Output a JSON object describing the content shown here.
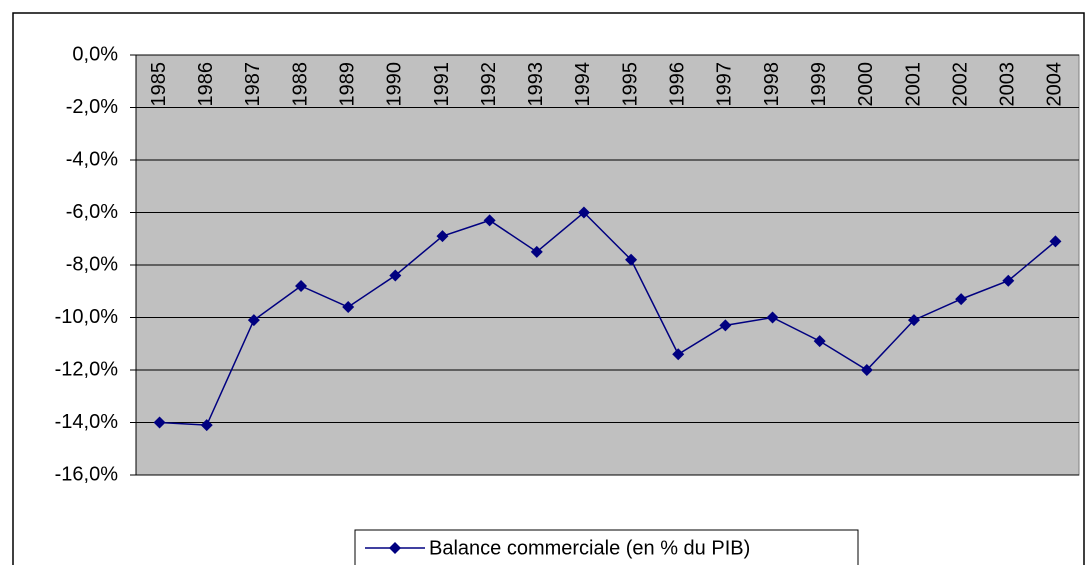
{
  "chart_data": {
    "type": "line",
    "categories": [
      "1985",
      "1986",
      "1987",
      "1988",
      "1989",
      "1990",
      "1991",
      "1992",
      "1993",
      "1994",
      "1995",
      "1996",
      "1997",
      "1998",
      "1999",
      "2000",
      "2001",
      "2002",
      "2003",
      "2004"
    ],
    "series": [
      {
        "name": "Balance commerciale (en % du PIB)",
        "color": "#000080",
        "values": [
          -14.0,
          -14.1,
          -10.1,
          -8.8,
          -9.6,
          -8.4,
          -6.9,
          -6.3,
          -7.5,
          -6.0,
          -7.8,
          -11.4,
          -10.3,
          -10.0,
          -10.9,
          -12.0,
          -10.1,
          -9.3,
          -8.6,
          -7.1
        ]
      }
    ],
    "ylim": [
      -16,
      0
    ],
    "yticks": [
      {
        "value": 0,
        "label": "0,0%"
      },
      {
        "value": -2,
        "label": "-2,0%"
      },
      {
        "value": -4,
        "label": "-4,0%"
      },
      {
        "value": -6,
        "label": "-6,0%"
      },
      {
        "value": -8,
        "label": "-8,0%"
      },
      {
        "value": -10,
        "label": "-10,0%"
      },
      {
        "value": -12,
        "label": "-12,0%"
      },
      {
        "value": -14,
        "label": "-14,0%"
      },
      {
        "value": -16,
        "label": "-16,0%"
      }
    ],
    "grid": true,
    "plot_background": "#c0c0c0",
    "legend": "bottom"
  }
}
